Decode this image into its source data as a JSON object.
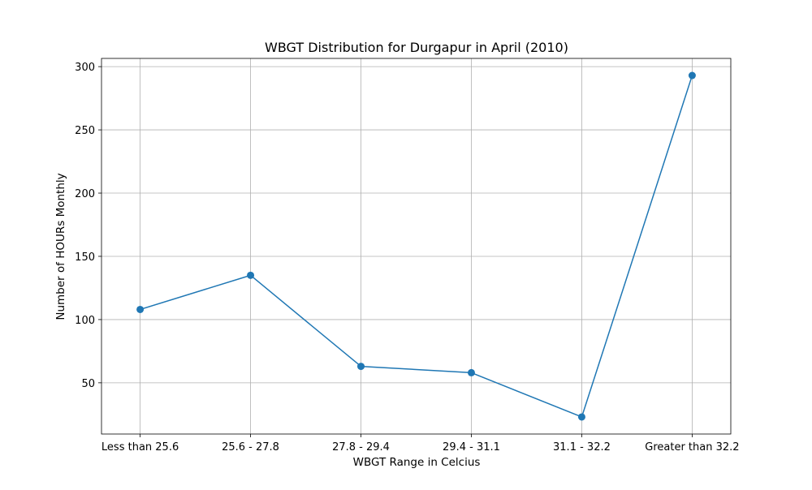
{
  "chart_data": {
    "type": "line",
    "title": "WBGT Distribution for Durgapur in April (2010)",
    "xlabel": "WBGT Range in Celcius",
    "ylabel": "Number of HOURs Monthly",
    "categories": [
      "Less than 25.6",
      "25.6 - 27.8",
      "27.8 - 29.4",
      "29.4 - 31.1",
      "31.1 - 32.2",
      "Greater than 32.2"
    ],
    "series": [
      {
        "values": [
          108,
          135,
          63,
          58,
          23,
          293
        ],
        "color": "#1f77b4",
        "marker": "circle"
      }
    ],
    "yticks": [
      50,
      100,
      150,
      200,
      250,
      300
    ],
    "ylim": [
      9.5,
      306.5
    ],
    "grid": true,
    "legend": "none"
  }
}
